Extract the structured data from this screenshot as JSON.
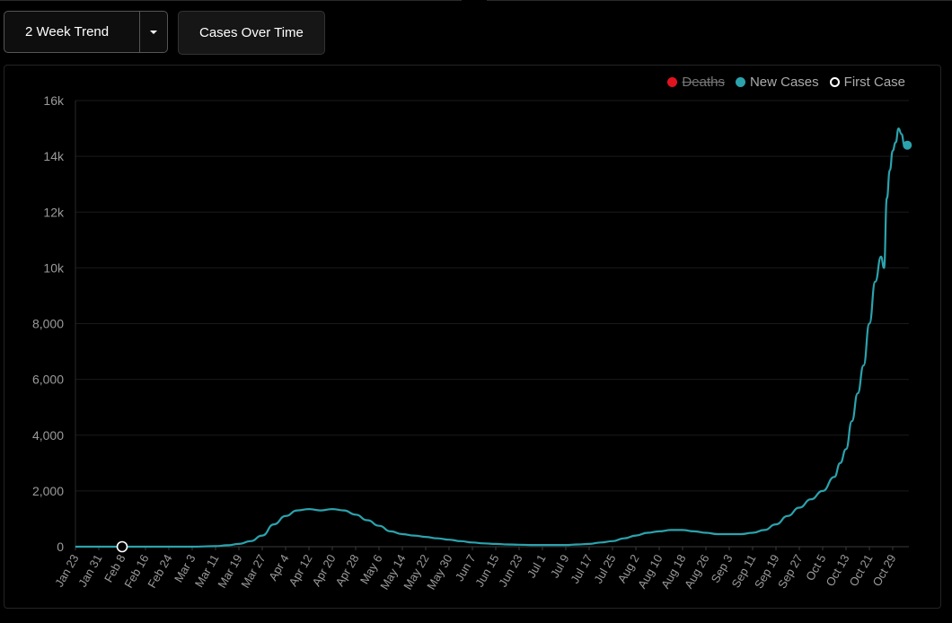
{
  "toolbar": {
    "dropdown_label": "2 Week Trend",
    "cases_button_label": "Cases Over Time"
  },
  "legend": {
    "items": [
      {
        "label": "Deaths",
        "color": "#e0141e",
        "disabled": true
      },
      {
        "label": "New Cases",
        "color": "#2ba3ad"
      },
      {
        "label": "First Case",
        "color": "#ffffff",
        "style": "ring"
      }
    ]
  },
  "chart_data": {
    "type": "line",
    "title": "",
    "xlabel": "",
    "ylabel": "",
    "ylim": [
      0,
      16000
    ],
    "y_ticks": [
      "0",
      "2,000",
      "4,000",
      "6,000",
      "8,000",
      "10k",
      "12k",
      "14k",
      "16k"
    ],
    "x_tick_labels": [
      "Jan 23",
      "Jan 31",
      "Feb 8",
      "Feb 16",
      "Feb 24",
      "Mar 3",
      "Mar 11",
      "Mar 19",
      "Mar 27",
      "Apr 4",
      "Apr 12",
      "Apr 20",
      "Apr 28",
      "May 6",
      "May 14",
      "May 22",
      "May 30",
      "Jun 7",
      "Jun 15",
      "Jun 23",
      "Jul 1",
      "Jul 9",
      "Jul 17",
      "Jul 25",
      "Aug 2",
      "Aug 10",
      "Aug 18",
      "Aug 26",
      "Sep 3",
      "Sep 11",
      "Sep 19",
      "Sep 27",
      "Oct 5",
      "Oct 13",
      "Oct 21",
      "Oct 29"
    ],
    "grid": true,
    "legend_position": "top-right",
    "series": [
      {
        "name": "New Cases",
        "color": "#2ba3ad",
        "x": [
          "Jan 23",
          "Jan 31",
          "Feb 8",
          "Feb 16",
          "Feb 24",
          "Mar 3",
          "Mar 11",
          "Mar 15",
          "Mar 19",
          "Mar 23",
          "Mar 27",
          "Mar 31",
          "Apr 4",
          "Apr 8",
          "Apr 12",
          "Apr 16",
          "Apr 20",
          "Apr 24",
          "Apr 28",
          "May 2",
          "May 6",
          "May 10",
          "May 14",
          "May 18",
          "May 22",
          "May 26",
          "May 30",
          "Jun 3",
          "Jun 7",
          "Jun 11",
          "Jun 15",
          "Jun 19",
          "Jun 23",
          "Jun 27",
          "Jul 1",
          "Jul 5",
          "Jul 9",
          "Jul 13",
          "Jul 17",
          "Jul 21",
          "Jul 25",
          "Jul 29",
          "Aug 2",
          "Aug 6",
          "Aug 10",
          "Aug 14",
          "Aug 18",
          "Aug 22",
          "Aug 26",
          "Aug 30",
          "Sep 3",
          "Sep 7",
          "Sep 11",
          "Sep 15",
          "Sep 19",
          "Sep 23",
          "Sep 27",
          "Oct 1",
          "Oct 5",
          "Oct 9",
          "Oct 11",
          "Oct 13",
          "Oct 15",
          "Oct 17",
          "Oct 19",
          "Oct 21",
          "Oct 23",
          "Oct 25",
          "Oct 26",
          "Oct 27",
          "Oct 28",
          "Oct 29",
          "Oct 30",
          "Oct 31",
          "Nov 1",
          "Nov 2",
          "Nov 3"
        ],
        "y": [
          0,
          0,
          0,
          0,
          0,
          0,
          20,
          50,
          100,
          200,
          400,
          800,
          1100,
          1300,
          1350,
          1300,
          1350,
          1300,
          1150,
          950,
          750,
          550,
          450,
          400,
          350,
          300,
          250,
          200,
          150,
          120,
          100,
          80,
          70,
          60,
          60,
          60,
          60,
          80,
          100,
          150,
          200,
          300,
          400,
          500,
          550,
          600,
          600,
          550,
          500,
          450,
          450,
          450,
          500,
          600,
          800,
          1100,
          1400,
          1700,
          2000,
          2500,
          3000,
          3500,
          4500,
          5500,
          6500,
          8000,
          9500,
          10400,
          10000,
          12500,
          13500,
          14200,
          14500,
          15000,
          14800,
          14400,
          14400
        ]
      }
    ],
    "first_case": {
      "x": "Feb 8",
      "y": 0
    },
    "last_point": {
      "x": "Nov 3",
      "y": 14400
    }
  }
}
